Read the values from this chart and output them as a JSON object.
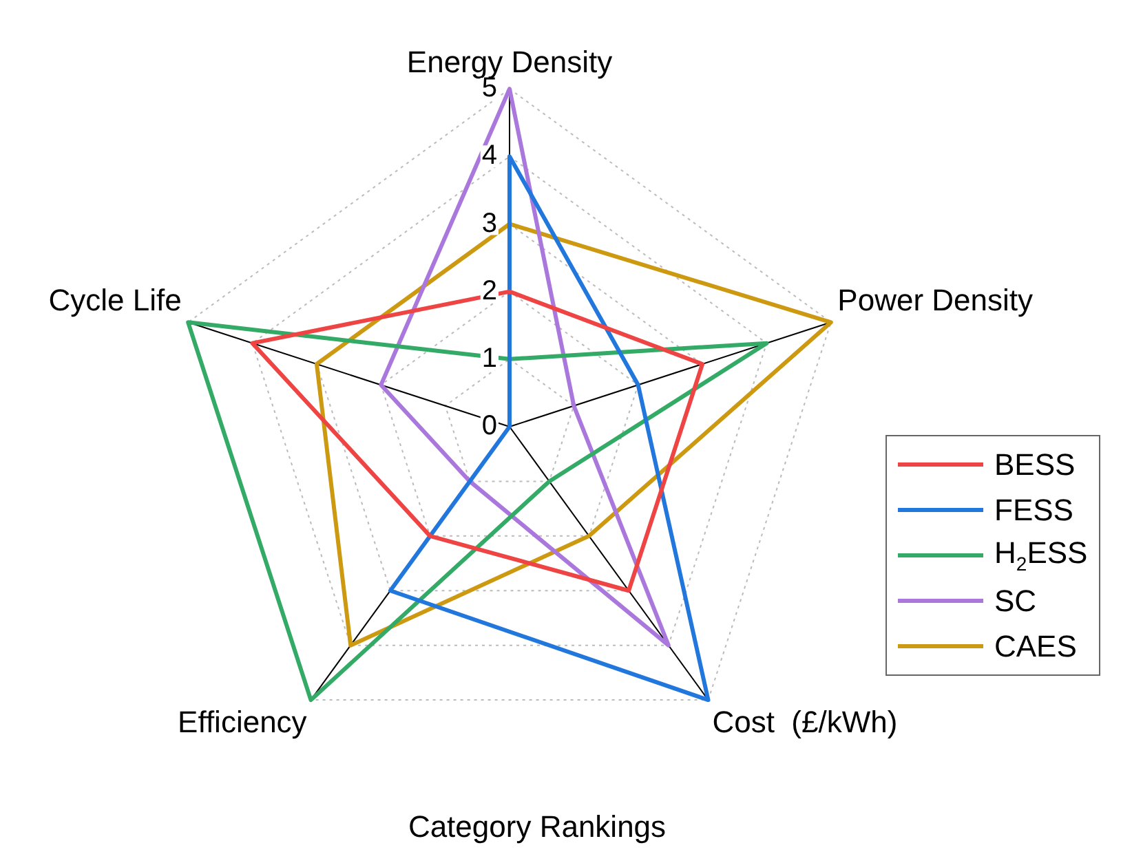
{
  "chart_data": {
    "type": "radar",
    "xlabel": "Category Rankings",
    "categories": [
      "Energy Density",
      "Power Density",
      "Cost  (£/kWh)",
      "Efficiency",
      "Cycle Life"
    ],
    "ylim": [
      0,
      5
    ],
    "yticks": [
      0,
      1,
      2,
      3,
      4,
      5
    ],
    "legend": "right",
    "grid": true,
    "marker": "none",
    "series": [
      {
        "name": "BESS",
        "color": "#ee4444",
        "values": [
          2,
          3,
          3,
          2,
          4
        ]
      },
      {
        "name": "FESS",
        "color": "#2277dd",
        "values": [
          4,
          2,
          5,
          3,
          0
        ]
      },
      {
        "name": "H$_{2}$ESS",
        "color": "#33aa66",
        "values": [
          1,
          4,
          1,
          5,
          5
        ]
      },
      {
        "name": "SC",
        "color": "#aa77dd",
        "values": [
          5,
          1,
          4,
          1,
          2
        ]
      },
      {
        "name": "CAES",
        "color": "#cc9911",
        "values": [
          3,
          5,
          2,
          4,
          3
        ]
      }
    ]
  }
}
